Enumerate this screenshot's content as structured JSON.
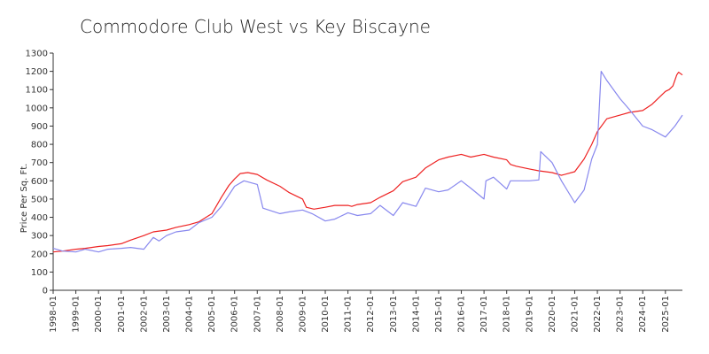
{
  "chart_data": {
    "type": "line",
    "title": "Commodore Club West vs Key Biscayne",
    "ylabel": "Price Per Sq. Ft.",
    "xlabel": "",
    "ylim": [
      0,
      1300
    ],
    "yticks": [
      0,
      100,
      200,
      300,
      400,
      500,
      600,
      700,
      800,
      900,
      1000,
      1100,
      1200,
      1300
    ],
    "xticks": [
      "1998-01",
      "1999-01",
      "2000-01",
      "2001-01",
      "2002-01",
      "2003-01",
      "2004-01",
      "2005-01",
      "2006-01",
      "2007-01",
      "2008-01",
      "2009-01",
      "2010-01",
      "2011-01",
      "2012-01",
      "2013-01",
      "2014-01",
      "2015-01",
      "2016-01",
      "2017-01",
      "2018-01",
      "2019-01",
      "2020-01",
      "2021-01",
      "2022-01",
      "2023-01",
      "2024-01",
      "2025-01"
    ],
    "x_start": "1998-01",
    "x_end": "2025-10",
    "legend": "none",
    "grid": false,
    "series": [
      {
        "color": "#ee2222",
        "points": [
          [
            "1998-01",
            210
          ],
          [
            "1998-06",
            215
          ],
          [
            "1999-01",
            225
          ],
          [
            "1999-06",
            230
          ],
          [
            "2000-01",
            240
          ],
          [
            "2000-06",
            245
          ],
          [
            "2001-01",
            255
          ],
          [
            "2001-06",
            275
          ],
          [
            "2002-01",
            300
          ],
          [
            "2002-06",
            320
          ],
          [
            "2003-01",
            330
          ],
          [
            "2003-06",
            345
          ],
          [
            "2004-01",
            360
          ],
          [
            "2004-06",
            375
          ],
          [
            "2005-01",
            420
          ],
          [
            "2005-06",
            510
          ],
          [
            "2005-10",
            575
          ],
          [
            "2006-01",
            610
          ],
          [
            "2006-04",
            640
          ],
          [
            "2006-08",
            645
          ],
          [
            "2007-01",
            635
          ],
          [
            "2007-06",
            605
          ],
          [
            "2008-01",
            570
          ],
          [
            "2008-06",
            535
          ],
          [
            "2009-01",
            500
          ],
          [
            "2009-03",
            455
          ],
          [
            "2009-07",
            445
          ],
          [
            "2010-01",
            455
          ],
          [
            "2010-06",
            465
          ],
          [
            "2011-01",
            465
          ],
          [
            "2011-03",
            460
          ],
          [
            "2011-06",
            470
          ],
          [
            "2012-01",
            480
          ],
          [
            "2012-06",
            510
          ],
          [
            "2013-01",
            545
          ],
          [
            "2013-06",
            595
          ],
          [
            "2014-01",
            620
          ],
          [
            "2014-06",
            670
          ],
          [
            "2015-01",
            715
          ],
          [
            "2015-06",
            730
          ],
          [
            "2016-01",
            745
          ],
          [
            "2016-06",
            730
          ],
          [
            "2017-01",
            745
          ],
          [
            "2017-06",
            730
          ],
          [
            "2018-01",
            715
          ],
          [
            "2018-03",
            690
          ],
          [
            "2018-06",
            680
          ],
          [
            "2019-01",
            665
          ],
          [
            "2019-06",
            655
          ],
          [
            "2020-01",
            645
          ],
          [
            "2020-06",
            630
          ],
          [
            "2021-01",
            650
          ],
          [
            "2021-06",
            720
          ],
          [
            "2021-10",
            800
          ],
          [
            "2022-01",
            870
          ],
          [
            "2022-06",
            940
          ],
          [
            "2023-01",
            960
          ],
          [
            "2023-06",
            975
          ],
          [
            "2024-01",
            985
          ],
          [
            "2024-06",
            1020
          ],
          [
            "2025-01",
            1090
          ],
          [
            "2025-03",
            1100
          ],
          [
            "2025-05",
            1120
          ],
          [
            "2025-07",
            1180
          ],
          [
            "2025-08",
            1195
          ],
          [
            "2025-10",
            1180
          ]
        ]
      },
      {
        "color": "#8888ee",
        "points": [
          [
            "1998-01",
            230
          ],
          [
            "1998-06",
            215
          ],
          [
            "1999-01",
            210
          ],
          [
            "1999-06",
            225
          ],
          [
            "2000-01",
            210
          ],
          [
            "2000-06",
            225
          ],
          [
            "2001-01",
            230
          ],
          [
            "2001-06",
            235
          ],
          [
            "2002-01",
            225
          ],
          [
            "2002-06",
            290
          ],
          [
            "2002-09",
            270
          ],
          [
            "2003-01",
            300
          ],
          [
            "2003-06",
            320
          ],
          [
            "2004-01",
            330
          ],
          [
            "2004-06",
            370
          ],
          [
            "2005-01",
            400
          ],
          [
            "2005-06",
            460
          ],
          [
            "2006-01",
            570
          ],
          [
            "2006-06",
            600
          ],
          [
            "2007-01",
            580
          ],
          [
            "2007-04",
            450
          ],
          [
            "2008-01",
            420
          ],
          [
            "2008-06",
            430
          ],
          [
            "2009-01",
            440
          ],
          [
            "2009-06",
            420
          ],
          [
            "2010-01",
            380
          ],
          [
            "2010-06",
            390
          ],
          [
            "2011-01",
            425
          ],
          [
            "2011-06",
            410
          ],
          [
            "2012-01",
            420
          ],
          [
            "2012-06",
            465
          ],
          [
            "2013-01",
            410
          ],
          [
            "2013-06",
            480
          ],
          [
            "2014-01",
            460
          ],
          [
            "2014-06",
            560
          ],
          [
            "2015-01",
            540
          ],
          [
            "2015-06",
            550
          ],
          [
            "2016-01",
            600
          ],
          [
            "2016-06",
            560
          ],
          [
            "2017-01",
            500
          ],
          [
            "2017-02",
            600
          ],
          [
            "2017-06",
            620
          ],
          [
            "2018-01",
            555
          ],
          [
            "2018-03",
            600
          ],
          [
            "2018-06",
            600
          ],
          [
            "2019-01",
            600
          ],
          [
            "2019-06",
            605
          ],
          [
            "2019-07",
            760
          ],
          [
            "2020-01",
            700
          ],
          [
            "2020-06",
            600
          ],
          [
            "2021-01",
            480
          ],
          [
            "2021-06",
            550
          ],
          [
            "2021-10",
            720
          ],
          [
            "2022-01",
            800
          ],
          [
            "2022-03",
            1200
          ],
          [
            "2022-06",
            1150
          ],
          [
            "2023-01",
            1050
          ],
          [
            "2023-06",
            990
          ],
          [
            "2024-01",
            900
          ],
          [
            "2024-06",
            880
          ],
          [
            "2025-01",
            840
          ],
          [
            "2025-06",
            900
          ],
          [
            "2025-10",
            960
          ]
        ]
      }
    ]
  }
}
